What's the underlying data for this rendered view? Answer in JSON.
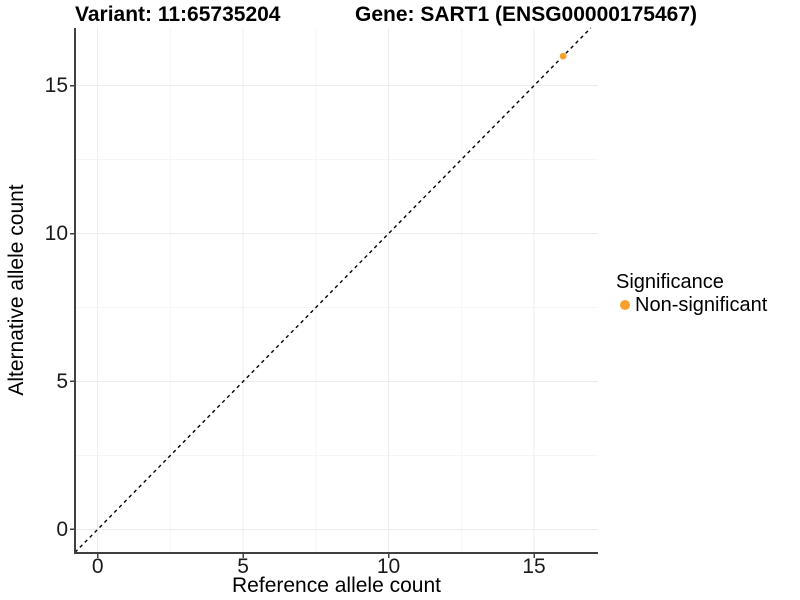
{
  "chart_data": {
    "type": "scatter",
    "title_variant": "Variant: 11:65735204",
    "title_gene": "Gene: SART1 (ENSG00000175467)",
    "xlabel": "Reference allele count",
    "ylabel": "Alternative allele count",
    "xlim": [
      -0.78,
      17.2
    ],
    "ylim": [
      -0.8,
      16.95
    ],
    "xticks": [
      0,
      5,
      10,
      15
    ],
    "yticks": [
      0,
      5,
      10,
      15
    ],
    "minor_xticks": [
      2.5,
      7.5,
      12.5
    ],
    "minor_yticks": [
      2.5,
      7.5,
      12.5
    ],
    "grid": true,
    "points": [
      {
        "x": 16,
        "y": 16,
        "significance": "Non-significant"
      }
    ],
    "identity_line": {
      "slope": 1,
      "intercept": 0,
      "style": "dashed",
      "color": "#000000"
    },
    "legend": {
      "title": "Significance",
      "position": "right",
      "items": [
        {
          "label": "Non-significant",
          "color": "#F9A12E"
        }
      ]
    }
  },
  "colors": {
    "background": "#ffffff",
    "axis": "#404040",
    "grid_major": "#ececec",
    "grid_minor": "#f6f6f6",
    "tick_text": "#1a1a1a",
    "point": "#F9A12E"
  }
}
